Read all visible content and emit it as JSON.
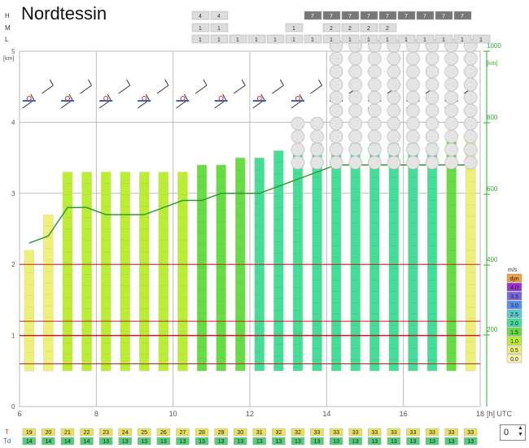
{
  "title": "Nordtessin",
  "cloud_rows": [
    {
      "label": "H",
      "cells": [
        "4",
        "4",
        "",
        "",
        "",
        "",
        "7",
        "7",
        "7",
        "7",
        "7",
        "7",
        "7",
        "7",
        "7"
      ],
      "dark_from": 6,
      "dark_start_light": [
        0,
        1
      ]
    },
    {
      "label": "M",
      "cells": [
        "1",
        "1",
        "",
        "",
        "",
        "1",
        "",
        "2",
        "2",
        "2",
        "2",
        "",
        "",
        ""
      ]
    },
    {
      "label": "L",
      "cells": [
        "1",
        "1",
        "1",
        "1",
        "1",
        "1",
        "1",
        "1",
        "1",
        "1",
        "1",
        "1",
        "1",
        "1",
        "1",
        "1",
        "1",
        "1",
        "1",
        "1",
        "1",
        "1",
        "1",
        "1",
        "1"
      ]
    }
  ],
  "axes": {
    "x_ticks": [
      "6",
      "8",
      "10",
      "12",
      "14",
      "16",
      "18"
    ],
    "x_unit": "[h] UTC",
    "y_left_ticks": [
      "0",
      "1",
      "2",
      "3",
      "4",
      "5"
    ],
    "y_left_unit": "[km]",
    "y_right_ticks": [
      "200",
      "400",
      "600",
      "800",
      "1000"
    ],
    "y_right_unit": "[km]"
  },
  "legend": {
    "unit": "m/s",
    "items": [
      {
        "label": "dyn",
        "color": "#f0a040"
      },
      {
        "label": "4.0",
        "color": "#9933cc"
      },
      {
        "label": "3.5",
        "color": "#7766dd"
      },
      {
        "label": "3.0",
        "color": "#5a8cf0"
      },
      {
        "label": "2.5",
        "color": "#55cccc"
      },
      {
        "label": "2.0",
        "color": "#44dd99"
      },
      {
        "label": "1.5",
        "color": "#66dd44"
      },
      {
        "label": "1.0",
        "color": "#bbee33"
      },
      {
        "label": "0.5",
        "color": "#eef07a"
      },
      {
        "label": "0.0",
        "color": "#f8f4b0"
      }
    ]
  },
  "chart_data": {
    "type": "bar",
    "title": "Nordtessin",
    "x_hours": [
      6.25,
      6.75,
      7.25,
      7.75,
      8.25,
      8.75,
      9.25,
      9.75,
      10.25,
      10.75,
      11.25,
      11.75,
      12.25,
      12.75,
      13.25,
      13.75,
      14.25,
      14.75,
      15.25,
      15.75,
      16.25,
      16.75,
      17.25,
      17.75
    ],
    "thermal_top_km": [
      2.2,
      2.7,
      3.3,
      3.3,
      3.3,
      3.3,
      3.3,
      3.3,
      3.3,
      3.4,
      3.4,
      3.5,
      3.5,
      3.6,
      3.6,
      3.7,
      3.7,
      3.7,
      3.7,
      3.7,
      3.7,
      3.7,
      3.8,
      3.8
    ],
    "boundary_layer_km": [
      2.3,
      2.4,
      2.8,
      2.8,
      2.7,
      2.7,
      2.7,
      2.8,
      2.9,
      2.9,
      3.0,
      3.0,
      3.0,
      3.1,
      3.2,
      3.3,
      3.4,
      3.4,
      3.4,
      3.4,
      3.4,
      3.4,
      3.4,
      3.4
    ],
    "max_climb_ms": [
      0.5,
      0.5,
      1.0,
      1.0,
      1.0,
      1.0,
      1.0,
      1.0,
      1.0,
      1.5,
      1.5,
      1.5,
      2.0,
      2.0,
      2.0,
      2.0,
      2.0,
      2.0,
      2.0,
      2.0,
      2.0,
      2.0,
      1.5,
      0.5
    ],
    "temperature_labels": [
      "19",
      "20",
      "21",
      "22",
      "23",
      "24",
      "25",
      "26",
      "27",
      "28",
      "29",
      "30",
      "31",
      "32",
      "32",
      "33",
      "33",
      "33",
      "33",
      "33",
      "33",
      "33",
      "33",
      "33"
    ],
    "dewpoint_labels": [
      "14",
      "14",
      "14",
      "14",
      "13",
      "13",
      "13",
      "13",
      "13",
      "13",
      "13",
      "13",
      "13",
      "13",
      "13",
      "13",
      "13",
      "13",
      "13",
      "13",
      "13",
      "13",
      "13",
      "13"
    ],
    "xlabel": "[h] UTC",
    "ylabel": "[km]",
    "xlim": [
      6,
      18
    ],
    "ylim": [
      0,
      5
    ]
  },
  "row_labels": {
    "t": "T",
    "td": "Td"
  },
  "spinner_value": "0"
}
